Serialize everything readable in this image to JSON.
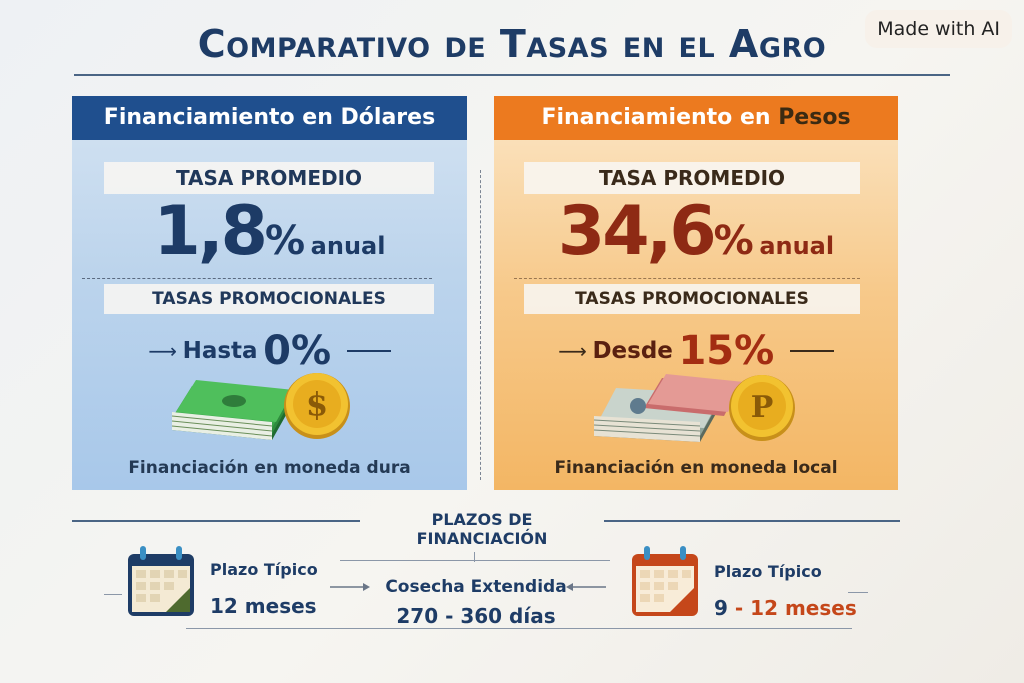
{
  "badge": "Made with AI",
  "title": "Comparativo de Tasas en el Agro",
  "usd": {
    "header_prefix": "Financiamiento en ",
    "header_highlight": "Dólares",
    "rate_label": "TASA PROMEDIO",
    "rate_number": "1,8",
    "rate_percent": "%",
    "rate_unit": "anual",
    "promo_label": "TASAS PROMOCIONALES",
    "promo_text": "Hasta",
    "promo_value": "0%",
    "coin_symbol": "$",
    "caption": "Financiación en moneda dura",
    "icons": [
      "arrow-right-icon",
      "dollar-bills-icon",
      "dollar-coin-icon"
    ],
    "color": "#1f4f8e"
  },
  "ars": {
    "header_prefix": "Financiamiento en ",
    "header_highlight": "Pesos",
    "rate_label": "TASA PROMEDIO",
    "rate_number": "34,6",
    "rate_percent": "%",
    "rate_unit": "anual",
    "promo_label": "TASAS PROMOCIONALES",
    "promo_text": "Desde",
    "promo_value": "15%",
    "coin_symbol": "P",
    "caption": "Financiación en moneda local",
    "icons": [
      "arrow-right-icon",
      "peso-bills-icon",
      "peso-coin-icon"
    ],
    "color": "#ec7a1f"
  },
  "plazos": {
    "section_title": "PLAZOS DE FINANCIACIÓN",
    "left_label": "Plazo Típico",
    "left_value": "12 meses",
    "center_label": "Cosecha Extendida",
    "center_value": "270 - 360 días",
    "right_label": "Plazo Típico",
    "right_value_a": "9",
    "right_value_sep": " - ",
    "right_value_b": "12 meses",
    "icons": [
      "calendar-icon",
      "calendar-icon"
    ]
  }
}
